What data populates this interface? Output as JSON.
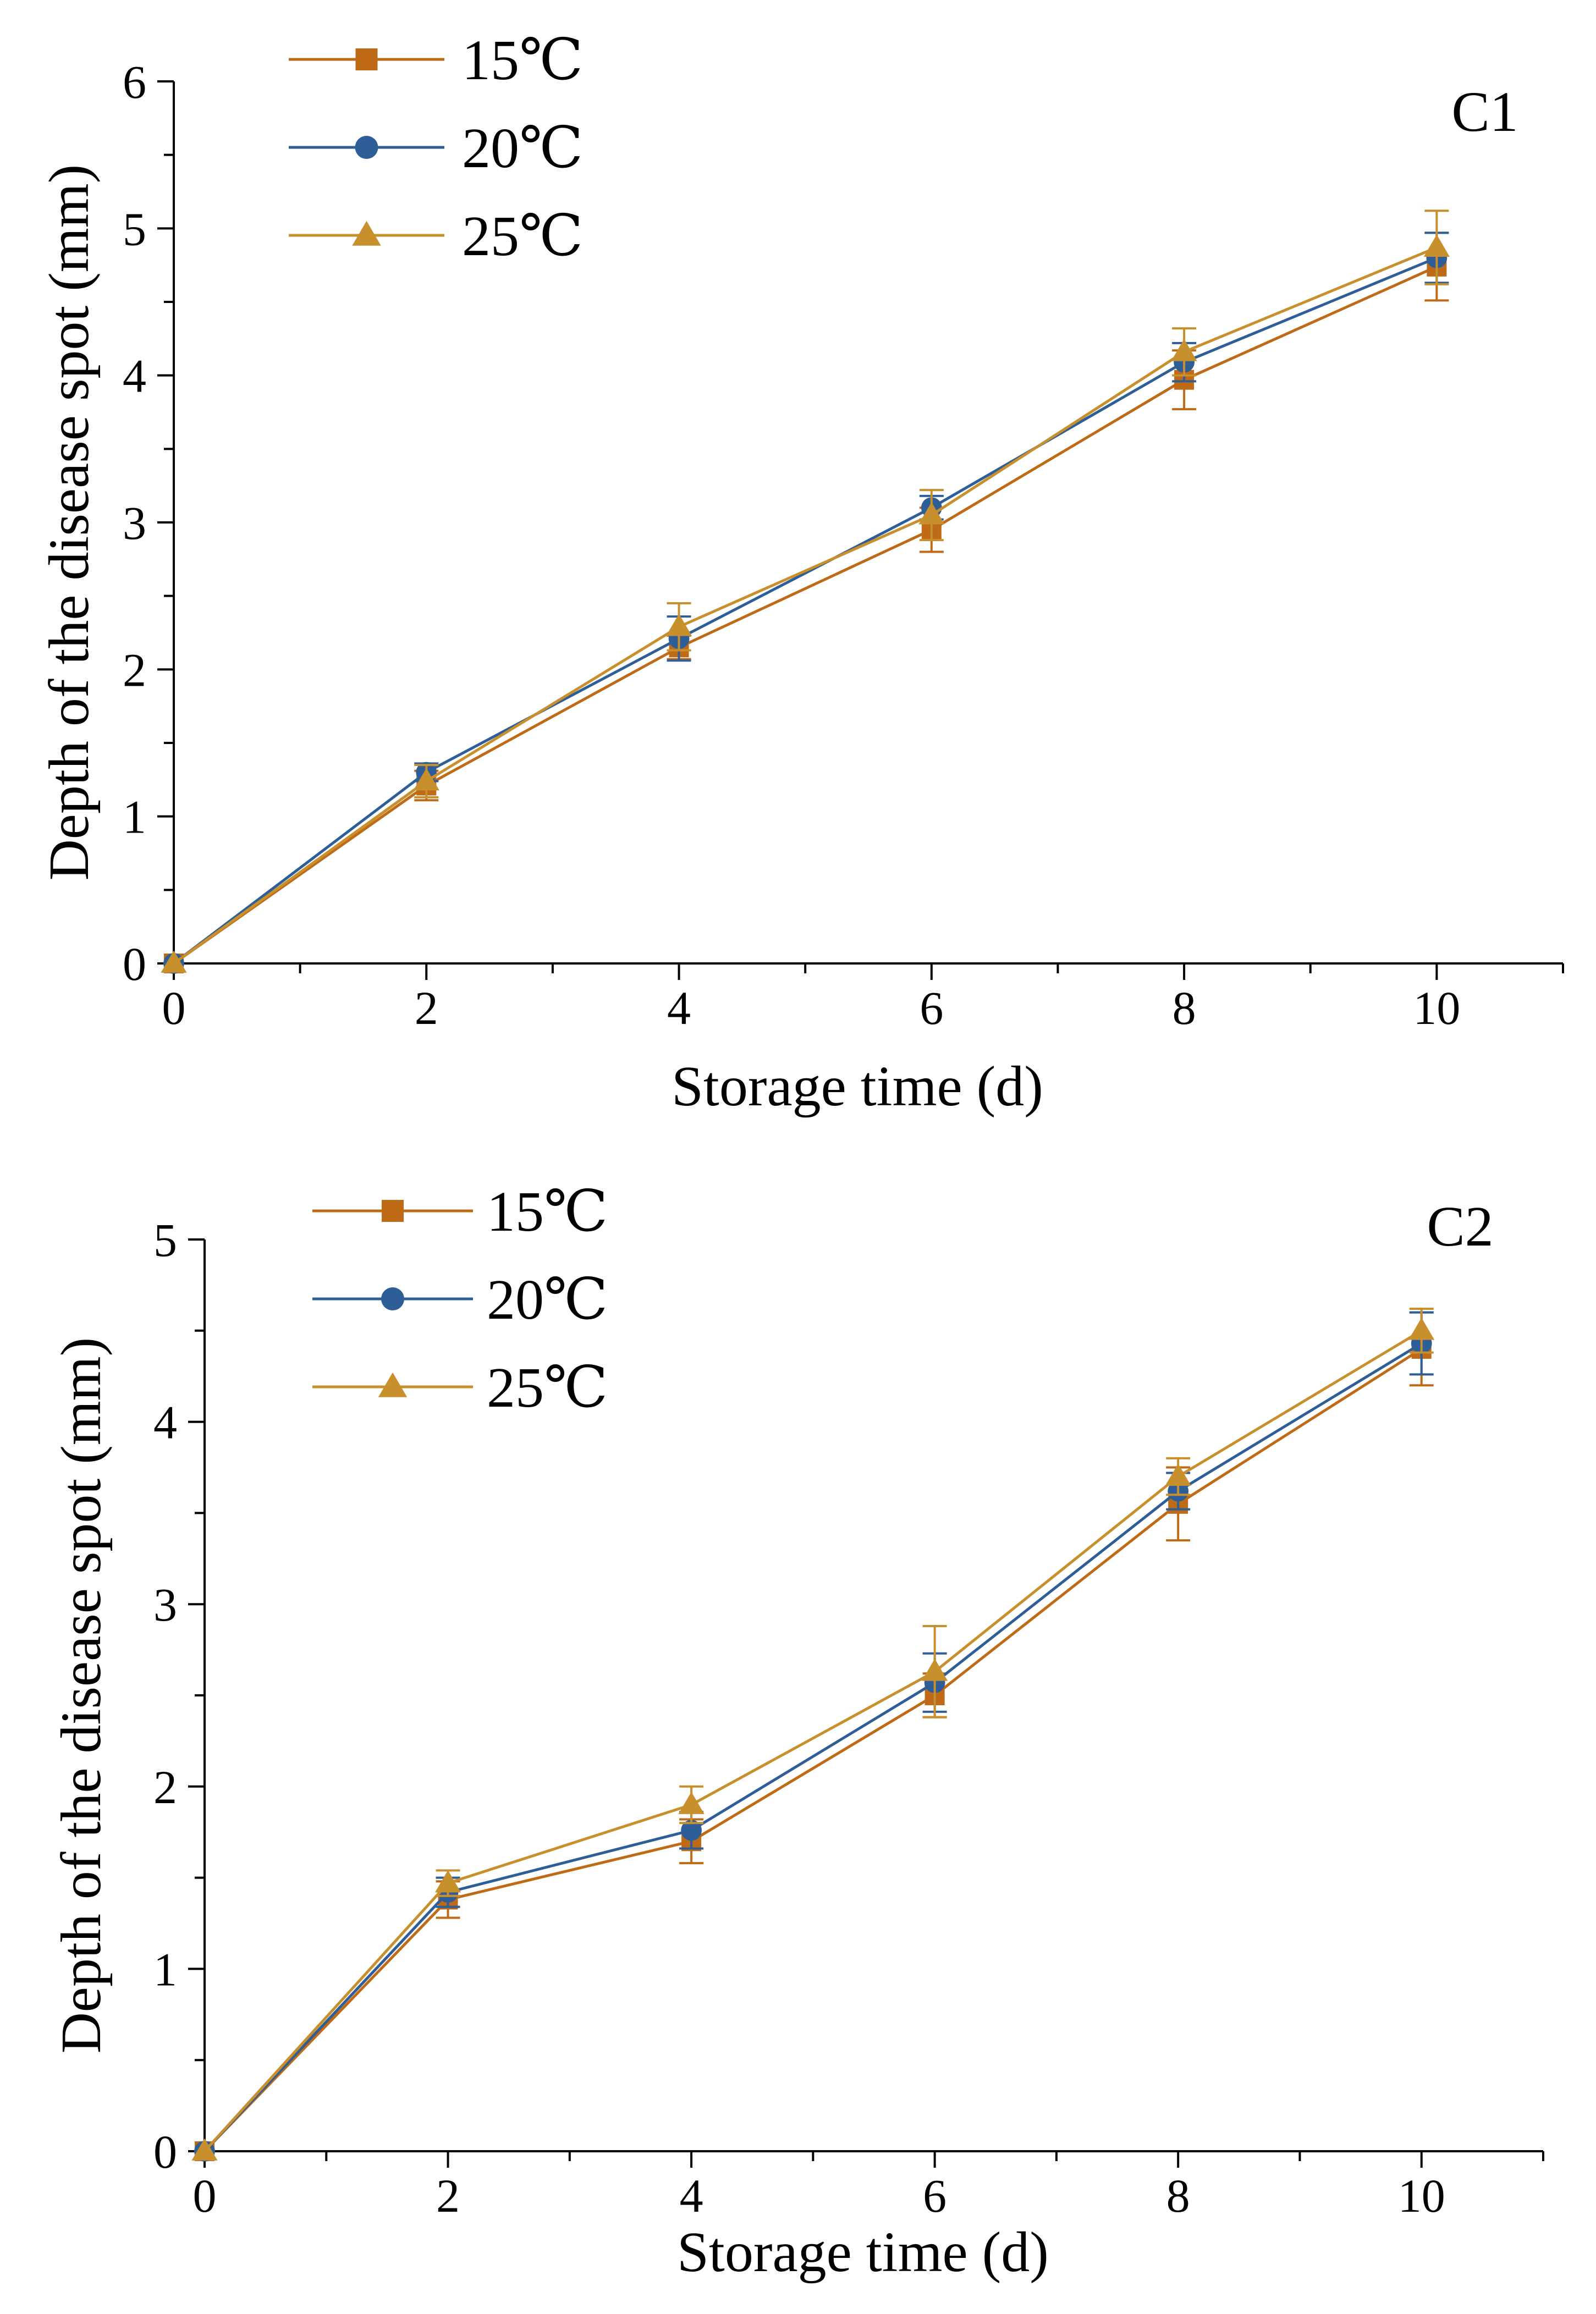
{
  "colors": {
    "c15": "#BF6A16",
    "c20": "#2E5E97",
    "c25": "#C8902C",
    "axis": "#000000"
  },
  "chart_data": [
    {
      "type": "line",
      "panel_label": "C1",
      "xlabel": "Storage time (d)",
      "ylabel": "Depth of the disease spot (mm)",
      "xlim": [
        0,
        11
      ],
      "ylim": [
        0,
        6
      ],
      "xticks": [
        0,
        2,
        4,
        6,
        8,
        10
      ],
      "yticks": [
        0,
        1,
        2,
        3,
        4,
        5,
        6
      ],
      "legend_position": "top-left",
      "x": [
        0,
        2,
        4,
        6,
        8,
        10
      ],
      "series": [
        {
          "name": "15℃",
          "marker": "square",
          "color": "#BF6A16",
          "values": [
            0,
            1.21,
            2.15,
            2.95,
            3.97,
            4.74
          ],
          "errors": [
            0,
            0.1,
            0.08,
            0.15,
            0.2,
            0.23
          ]
        },
        {
          "name": "20℃",
          "marker": "circle",
          "color": "#2E5E97",
          "values": [
            0,
            1.3,
            2.21,
            3.1,
            4.09,
            4.8
          ],
          "errors": [
            0,
            0.06,
            0.15,
            0.08,
            0.13,
            0.17
          ]
        },
        {
          "name": "25℃",
          "marker": "triangle",
          "color": "#C8902C",
          "values": [
            0,
            1.24,
            2.29,
            3.05,
            4.16,
            4.87
          ],
          "errors": [
            0,
            0.11,
            0.16,
            0.17,
            0.16,
            0.25
          ]
        }
      ]
    },
    {
      "type": "line",
      "panel_label": "C2",
      "xlabel": "Storage time (d)",
      "ylabel": "Depth of the disease spot (mm)",
      "xlim": [
        0,
        11
      ],
      "ylim": [
        0,
        5
      ],
      "xticks": [
        0,
        2,
        4,
        6,
        8,
        10
      ],
      "yticks": [
        0,
        1,
        2,
        3,
        4,
        5
      ],
      "legend_position": "top-left",
      "x": [
        0,
        2,
        4,
        6,
        8,
        10
      ],
      "series": [
        {
          "name": "15℃",
          "marker": "square",
          "color": "#BF6A16",
          "values": [
            0,
            1.38,
            1.7,
            2.5,
            3.55,
            4.4
          ],
          "errors": [
            0,
            0.1,
            0.12,
            0.12,
            0.2,
            0.2
          ]
        },
        {
          "name": "20℃",
          "marker": "circle",
          "color": "#2E5E97",
          "values": [
            0,
            1.42,
            1.76,
            2.57,
            3.62,
            4.43
          ],
          "errors": [
            0,
            0.08,
            0.1,
            0.16,
            0.1,
            0.17
          ]
        },
        {
          "name": "25℃",
          "marker": "triangle",
          "color": "#C8902C",
          "values": [
            0,
            1.47,
            1.9,
            2.63,
            3.7,
            4.5
          ],
          "errors": [
            0,
            0.07,
            0.1,
            0.25,
            0.1,
            0.12
          ]
        }
      ]
    }
  ]
}
